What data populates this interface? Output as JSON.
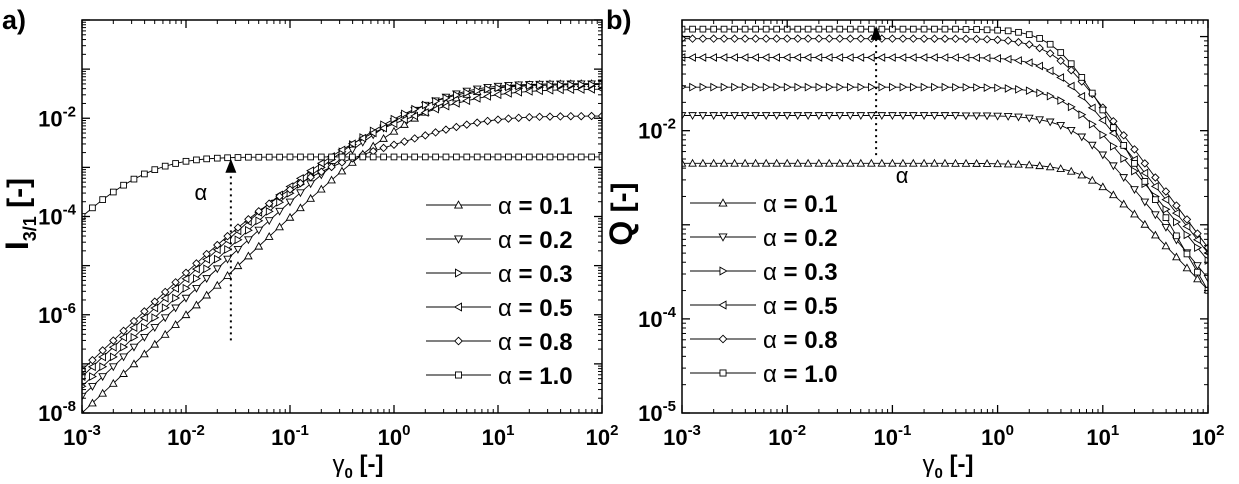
{
  "chart_data": [
    {
      "type": "line",
      "panel_label": "a)",
      "xlabel": {
        "symbol": "γ",
        "sub": "0",
        "unit": "[-]"
      },
      "ylabel": {
        "symbol": "I",
        "sub": "3/1",
        "unit": "[-]"
      },
      "xscale": "log",
      "yscale": "log",
      "xlim": [
        0.001,
        100
      ],
      "ylim": [
        1e-08,
        1
      ],
      "xticks": [
        {
          "base": "10",
          "exp": "-3"
        },
        {
          "base": "10",
          "exp": "-2"
        },
        {
          "base": "10",
          "exp": "-1"
        },
        {
          "base": "10",
          "exp": "0"
        },
        {
          "base": "10",
          "exp": "1"
        },
        {
          "base": "10",
          "exp": "2"
        }
      ],
      "yticks": [
        {
          "value": 1e-08,
          "base": "10",
          "exp": "-8"
        },
        {
          "value": 1e-06,
          "base": "10",
          "exp": "-6"
        },
        {
          "value": 0.0001,
          "base": "10",
          "exp": "-4"
        },
        {
          "value": 0.01,
          "base": "10",
          "exp": "-2"
        }
      ],
      "legend_position": "bottom-right",
      "annotation": {
        "text": "α",
        "x": 0.027,
        "y_from": 3e-07,
        "y_to": 0.0015,
        "direction": "up"
      },
      "x": [
        0.001,
        0.00126,
        0.00158,
        0.002,
        0.00251,
        0.00316,
        0.00398,
        0.00501,
        0.00631,
        0.00794,
        0.01,
        0.0126,
        0.0158,
        0.02,
        0.0251,
        0.0316,
        0.0398,
        0.0501,
        0.0631,
        0.0794,
        0.1,
        0.126,
        0.158,
        0.2,
        0.251,
        0.316,
        0.398,
        0.501,
        0.631,
        0.794,
        1.0,
        1.26,
        1.58,
        2.0,
        2.51,
        3.16,
        3.98,
        5.01,
        6.31,
        7.94,
        10.0,
        12.6,
        15.8,
        20.0,
        25.1,
        31.6,
        39.8,
        50.1,
        63.1,
        79.4,
        100.0
      ],
      "series": [
        {
          "name": "α = 0.1",
          "marker": "triangle-up",
          "values": [
            1e-08,
            1.59e-08,
            2.52e-08,
            4e-08,
            6.33e-08,
            1e-07,
            1.59e-07,
            2.51e-07,
            3.98e-07,
            6.3e-07,
            1e-06,
            1.58e-06,
            2.51e-06,
            3.97e-06,
            6.28e-06,
            9.94e-06,
            1.57e-05,
            2.48e-05,
            3.9e-05,
            6.13e-05,
            9.6e-05,
            0.00015,
            0.000233,
            0.00036,
            0.000552,
            0.00084,
            0.00126,
            0.00186,
            0.00271,
            0.00387,
            0.00542,
            0.00746,
            0.01,
            0.0132,
            0.0169,
            0.0212,
            0.0258,
            0.0305,
            0.0349,
            0.0389,
            0.0422,
            0.0448,
            0.0467,
            0.0481,
            0.049,
            0.0496,
            0.05,
            0.0503,
            0.0505,
            0.0506,
            0.0507
          ]
        },
        {
          "name": "α = 0.2",
          "marker": "triangle-down",
          "values": [
            2.2e-08,
            3.48e-08,
            5.52e-08,
            8.75e-08,
            1.39e-07,
            2.2e-07,
            3.48e-07,
            5.51e-07,
            8.72e-07,
            1.38e-06,
            2.18e-06,
            3.46e-06,
            5.47e-06,
            8.64e-06,
            1.36e-05,
            2.15e-05,
            3.37e-05,
            5.29e-05,
            8.26e-05,
            0.000128,
            0.000198,
            0.000305,
            0.000465,
            0.000704,
            0.00105,
            0.00156,
            0.00227,
            0.00325,
            0.00459,
            0.00635,
            0.00858,
            0.0113,
            0.0146,
            0.0184,
            0.0226,
            0.027,
            0.0315,
            0.0357,
            0.0395,
            0.0426,
            0.045,
            0.0468,
            0.048,
            0.0488,
            0.0494,
            0.0497,
            0.05,
            0.0501,
            0.0502,
            0.0503,
            0.0503
          ]
        },
        {
          "name": "α = 0.3",
          "marker": "triangle-right",
          "values": [
            3.5e-08,
            5.54e-08,
            8.78e-08,
            1.39e-07,
            2.2e-07,
            3.49e-07,
            5.53e-07,
            8.75e-07,
            1.39e-06,
            2.19e-06,
            3.46e-06,
            5.47e-06,
            8.64e-06,
            1.36e-05,
            2.14e-05,
            3.36e-05,
            5.26e-05,
            8.19e-05,
            0.000127,
            0.000195,
            0.000298,
            0.000451,
            0.000674,
            0.000996,
            0.00145,
            0.00208,
            0.00293,
            0.00406,
            0.00553,
            0.00738,
            0.00962,
            0.0123,
            0.0153,
            0.0186,
            0.0222,
            0.0259,
            0.0296,
            0.0331,
            0.0363,
            0.0391,
            0.0414,
            0.0433,
            0.0447,
            0.0458,
            0.0466,
            0.0472,
            0.0477,
            0.048,
            0.0483,
            0.0484,
            0.0486
          ]
        },
        {
          "name": "α = 0.5",
          "marker": "triangle-left",
          "values": [
            5.5e-08,
            8.71e-08,
            1.38e-07,
            2.18e-07,
            3.46e-07,
            5.47e-07,
            8.66e-07,
            1.37e-06,
            2.17e-06,
            3.42e-06,
            5.4e-06,
            8.51e-06,
            1.34e-05,
            2.1e-05,
            3.28e-05,
            5.1e-05,
            7.88e-05,
            0.000121,
            0.000183,
            0.000275,
            0.000408,
            0.000596,
            0.000857,
            0.00121,
            0.00167,
            0.00227,
            0.00302,
            0.00393,
            0.00502,
            0.00628,
            0.00772,
            0.00933,
            0.0111,
            0.0131,
            0.0153,
            0.0176,
            0.0201,
            0.0227,
            0.0253,
            0.0278,
            0.0301,
            0.0321,
            0.0338,
            0.0352,
            0.0363,
            0.0371,
            0.0377,
            0.0382,
            0.0385,
            0.0388,
            0.039
          ]
        },
        {
          "name": "α = 0.8",
          "marker": "diamond",
          "values": [
            7.5e-08,
            1.19e-07,
            1.88e-07,
            2.98e-07,
            4.71e-07,
            7.44e-07,
            1.17e-06,
            1.85e-06,
            2.91e-06,
            4.57e-06,
            7.14e-06,
            1.11e-05,
            1.72e-05,
            2.63e-05,
            3.98e-05,
            5.95e-05,
            8.78e-05,
            0.000128,
            0.000183,
            0.000257,
            0.000354,
            0.000478,
            0.000631,
            0.000813,
            0.00102,
            0.00126,
            0.00152,
            0.00181,
            0.00213,
            0.00249,
            0.00289,
            0.00335,
            0.00388,
            0.00448,
            0.00515,
            0.00587,
            0.00664,
            0.00741,
            0.00814,
            0.00881,
            0.00938,
            0.00984,
            0.0102,
            0.0105,
            0.0107,
            0.0108,
            0.0109,
            0.011,
            0.011,
            0.0111,
            0.0111
          ]
        },
        {
          "name": "α = 1.0",
          "marker": "square",
          "values": [
            0.0001,
            0.00015,
            0.000221,
            0.000315,
            0.000434,
            0.000577,
            0.000735,
            0.000899,
            0.00106,
            0.0012,
            0.00133,
            0.00142,
            0.00149,
            0.00154,
            0.00157,
            0.00159,
            0.00161,
            0.00161,
            0.00162,
            0.00162,
            0.00163,
            0.00163,
            0.00163,
            0.00163,
            0.00163,
            0.00163,
            0.00163,
            0.00163,
            0.00163,
            0.00163,
            0.00163,
            0.00163,
            0.00163,
            0.00163,
            0.00163,
            0.00163,
            0.00163,
            0.00163,
            0.00163,
            0.00163,
            0.00163,
            0.00163,
            0.00163,
            0.00163,
            0.00163,
            0.00163,
            0.00163,
            0.00163,
            0.00163,
            0.00163,
            0.00163
          ]
        }
      ]
    },
    {
      "type": "line",
      "panel_label": "b)",
      "xlabel": {
        "symbol": "γ",
        "sub": "0",
        "unit": "[-]"
      },
      "ylabel": {
        "symbol": "Q",
        "sub": "",
        "unit": "[-]"
      },
      "xscale": "log",
      "yscale": "log",
      "xlim": [
        0.001,
        100
      ],
      "ylim": [
        1e-05,
        0.15
      ],
      "xticks": [
        {
          "base": "10",
          "exp": "-3"
        },
        {
          "base": "10",
          "exp": "-2"
        },
        {
          "base": "10",
          "exp": "-1"
        },
        {
          "base": "10",
          "exp": "0"
        },
        {
          "base": "10",
          "exp": "1"
        },
        {
          "base": "10",
          "exp": "2"
        }
      ],
      "yticks": [
        {
          "value": 1e-05,
          "base": "10",
          "exp": "-5"
        },
        {
          "value": 0.0001,
          "base": "10",
          "exp": "-4"
        },
        {
          "value": 0.01,
          "base": "10",
          "exp": "-2"
        }
      ],
      "legend_position": "bottom-left",
      "annotation": {
        "text": "α",
        "x": 0.07,
        "y_from": 0.0055,
        "y_to": 0.13,
        "direction": "up"
      },
      "x": [
        0.001,
        0.00126,
        0.00158,
        0.002,
        0.00251,
        0.00316,
        0.00398,
        0.00501,
        0.00631,
        0.00794,
        0.01,
        0.0126,
        0.0158,
        0.02,
        0.0251,
        0.0316,
        0.0398,
        0.0501,
        0.0631,
        0.0794,
        0.1,
        0.126,
        0.158,
        0.2,
        0.251,
        0.316,
        0.398,
        0.501,
        0.631,
        0.794,
        1.0,
        1.26,
        1.58,
        2.0,
        2.51,
        3.16,
        3.98,
        5.01,
        6.31,
        7.94,
        10.0,
        12.6,
        15.8,
        20.0,
        25.1,
        31.6,
        39.8,
        50.1,
        63.1,
        79.4,
        100.0
      ],
      "series": [
        {
          "name": "α = 0.1",
          "marker": "triangle-up",
          "values": [
            0.0045,
            0.0045,
            0.0045,
            0.0045,
            0.0045,
            0.0045,
            0.0045,
            0.0045,
            0.0045,
            0.0045,
            0.0045,
            0.0045,
            0.0045,
            0.0045,
            0.0045,
            0.0045,
            0.0045,
            0.0045,
            0.0045,
            0.0045,
            0.0045,
            0.0045,
            0.0045,
            0.0045,
            0.0045,
            0.0045,
            0.00449,
            0.00449,
            0.00448,
            0.00447,
            0.00445,
            0.00442,
            0.00439,
            0.00433,
            0.00424,
            0.00412,
            0.00395,
            0.0037,
            0.00338,
            0.00297,
            0.00253,
            0.00208,
            0.00166,
            0.0013,
            0.00101,
            0.000777,
            0.000596,
            0.000455,
            0.000348,
            0.000266,
            0.000204
          ]
        },
        {
          "name": "α = 0.2",
          "marker": "triangle-down",
          "values": [
            0.0145,
            0.0145,
            0.0145,
            0.0145,
            0.0145,
            0.0145,
            0.0145,
            0.0145,
            0.0145,
            0.0145,
            0.0145,
            0.0145,
            0.0145,
            0.0145,
            0.0145,
            0.0145,
            0.0145,
            0.0145,
            0.0145,
            0.0145,
            0.0145,
            0.0145,
            0.0145,
            0.0145,
            0.0145,
            0.0145,
            0.0145,
            0.0144,
            0.0144,
            0.0144,
            0.0143,
            0.0142,
            0.014,
            0.0136,
            0.0131,
            0.0124,
            0.0114,
            0.0101,
            0.00859,
            0.00702,
            0.00553,
            0.00424,
            0.00318,
            0.00237,
            0.00175,
            0.00128,
            0.000941,
            0.000689,
            0.000505,
            0.000369,
            0.00027
          ]
        },
        {
          "name": "α = 0.3",
          "marker": "triangle-right",
          "values": [
            0.029,
            0.029,
            0.029,
            0.029,
            0.029,
            0.029,
            0.029,
            0.029,
            0.029,
            0.029,
            0.029,
            0.029,
            0.029,
            0.029,
            0.029,
            0.029,
            0.029,
            0.029,
            0.029,
            0.029,
            0.029,
            0.029,
            0.029,
            0.029,
            0.029,
            0.029,
            0.0289,
            0.0289,
            0.0288,
            0.0287,
            0.0285,
            0.0281,
            0.0275,
            0.0266,
            0.0252,
            0.0233,
            0.0209,
            0.0179,
            0.0148,
            0.0117,
            0.00903,
            0.00681,
            0.00505,
            0.00372,
            0.00273,
            0.002,
            0.00146,
            0.00107,
            0.000782,
            0.000571,
            0.000417
          ]
        },
        {
          "name": "α = 0.5",
          "marker": "triangle-left",
          "values": [
            0.06,
            0.06,
            0.06,
            0.06,
            0.06,
            0.06,
            0.06,
            0.06,
            0.06,
            0.06,
            0.06,
            0.06,
            0.06,
            0.06,
            0.06,
            0.06,
            0.06,
            0.06,
            0.06,
            0.06,
            0.06,
            0.06,
            0.06,
            0.06,
            0.06,
            0.0599,
            0.0599,
            0.0598,
            0.0596,
            0.0592,
            0.0586,
            0.0575,
            0.0557,
            0.0528,
            0.0487,
            0.0432,
            0.0367,
            0.0298,
            0.0232,
            0.0175,
            0.0129,
            0.00941,
            0.00681,
            0.00492,
            0.00355,
            0.00256,
            0.00185,
            0.00133,
            0.000962,
            0.000694,
            0.000501
          ]
        },
        {
          "name": "α = 0.8",
          "marker": "diamond",
          "values": [
            0.095,
            0.095,
            0.095,
            0.095,
            0.095,
            0.095,
            0.095,
            0.095,
            0.095,
            0.095,
            0.095,
            0.095,
            0.095,
            0.095,
            0.095,
            0.095,
            0.095,
            0.095,
            0.095,
            0.095,
            0.095,
            0.095,
            0.095,
            0.0949,
            0.0949,
            0.0948,
            0.0947,
            0.0945,
            0.0941,
            0.0935,
            0.0923,
            0.0904,
            0.0872,
            0.0824,
            0.0754,
            0.0662,
            0.0553,
            0.0439,
            0.0333,
            0.0245,
            0.0176,
            0.0126,
            0.00893,
            0.00633,
            0.00449,
            0.00318,
            0.00226,
            0.0016,
            0.00114,
            0.000807,
            0.000572
          ]
        },
        {
          "name": "α = 1.0",
          "marker": "square",
          "values": [
            0.12,
            0.12,
            0.12,
            0.12,
            0.12,
            0.12,
            0.12,
            0.12,
            0.12,
            0.12,
            0.12,
            0.12,
            0.12,
            0.12,
            0.12,
            0.12,
            0.12,
            0.12,
            0.12,
            0.12,
            0.12,
            0.12,
            0.12,
            0.12,
            0.12,
            0.12,
            0.12,
            0.119,
            0.119,
            0.118,
            0.117,
            0.115,
            0.111,
            0.105,
            0.0955,
            0.0829,
            0.0677,
            0.0515,
            0.0368,
            0.0251,
            0.0166,
            0.0108,
            0.00697,
            0.00449,
            0.00289,
            0.00185,
            0.00119,
            0.000763,
            0.00049,
            0.000314,
            0.000201
          ]
        }
      ]
    }
  ]
}
